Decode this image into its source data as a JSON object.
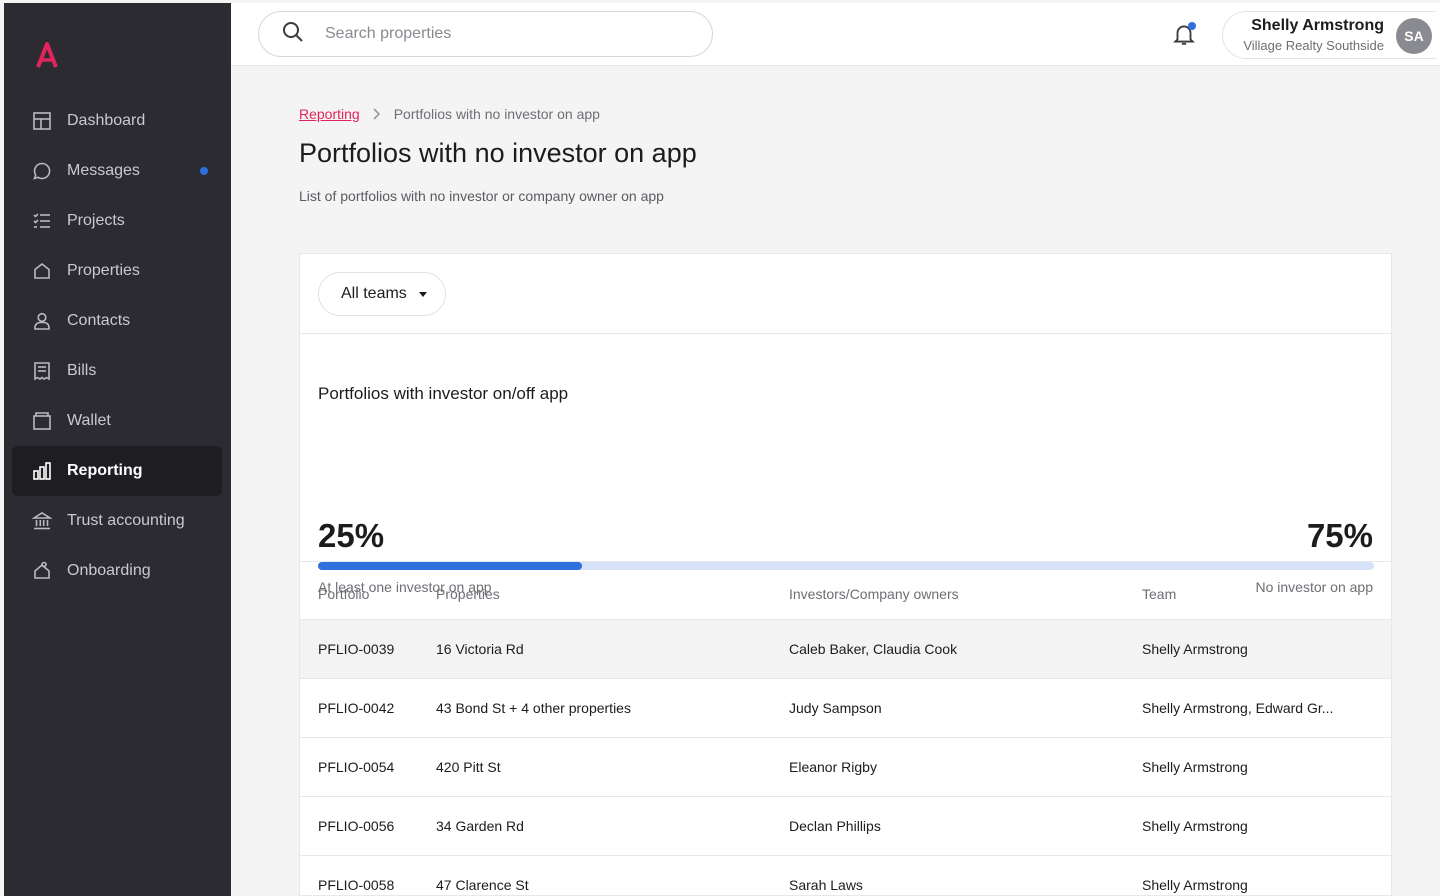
{
  "sidebar": {
    "logo_icon": "brand-a-logo",
    "items": [
      {
        "label": "Dashboard",
        "icon": "dashboard-icon",
        "active": false,
        "dot": false
      },
      {
        "label": "Messages",
        "icon": "chat-bubble-icon",
        "active": false,
        "dot": true
      },
      {
        "label": "Projects",
        "icon": "checklist-icon",
        "active": false,
        "dot": false
      },
      {
        "label": "Properties",
        "icon": "house-icon",
        "active": false,
        "dot": false
      },
      {
        "label": "Contacts",
        "icon": "person-icon",
        "active": false,
        "dot": false
      },
      {
        "label": "Bills",
        "icon": "receipt-icon",
        "active": false,
        "dot": false
      },
      {
        "label": "Wallet",
        "icon": "wallet-icon",
        "active": false,
        "dot": false
      },
      {
        "label": "Reporting",
        "icon": "bar-chart-icon",
        "active": true,
        "dot": false
      },
      {
        "label": "Trust accounting",
        "icon": "bank-icon",
        "active": false,
        "dot": false
      },
      {
        "label": "Onboarding",
        "icon": "key-house-icon",
        "active": false,
        "dot": false
      }
    ]
  },
  "topbar": {
    "search_placeholder": "Search properties",
    "user_name": "Shelly Armstrong",
    "user_org": "Village Realty Southside",
    "user_initials": "SA"
  },
  "breadcrumb": {
    "parent": "Reporting",
    "current": "Portfolios with no investor on app"
  },
  "page": {
    "title": "Portfolios with no investor on app",
    "subtitle": "List of portfolios with no investor or company owner on app"
  },
  "filter": {
    "team_label": "All teams"
  },
  "stats": {
    "title": "Portfolios with investor on/off app",
    "on_app_percent": "25%",
    "off_app_percent": "75%",
    "on_app_fraction": 0.25,
    "on_app_label": "At least one investor on app",
    "off_app_label": "No investor on app"
  },
  "table": {
    "headers": [
      "Portfolio",
      "Properties",
      "Investors/Company owners",
      "Team"
    ],
    "rows": [
      [
        "PFLIO-0039",
        "16 Victoria Rd",
        "Caleb Baker, Claudia Cook",
        "Shelly Armstrong"
      ],
      [
        "PFLIO-0042",
        "43 Bond St + 4 other properties",
        "Judy Sampson",
        "Shelly Armstrong, Edward Gr..."
      ],
      [
        "PFLIO-0054",
        "420 Pitt St",
        "Eleanor Rigby",
        "Shelly Armstrong"
      ],
      [
        "PFLIO-0056",
        "34 Garden Rd",
        "Declan Phillips",
        "Shelly Armstrong"
      ],
      [
        "PFLIO-0058",
        "47 Clarence St",
        "Sarah Laws",
        "Shelly Armstrong"
      ]
    ]
  },
  "colors": {
    "sidebar_bg": "#2b2b31",
    "accent_pink": "#e3245b",
    "progress_blue": "#2f6fde",
    "progress_track": "#d6e2f7"
  }
}
